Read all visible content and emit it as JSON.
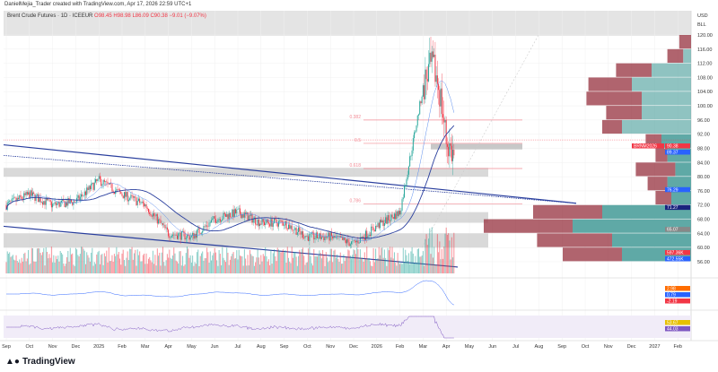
{
  "credit": "DanielMejia_Trader created with TradingView.com, Apr 17, 2026 22:59 UTC+1",
  "legend": {
    "symbol": "Brent Crude Futures · 1D · ICEEUR",
    "o": "O98.45",
    "h": "H98.98",
    "l": "L86.09",
    "c": "C90.38",
    "chg": "−9.01 (−9.07%)"
  },
  "axis": {
    "currency": "USD",
    "unit": "BLL"
  },
  "fib": [
    {
      "label": "0.382",
      "price": 96
    },
    {
      "label": "0.5",
      "price": 89.4
    },
    {
      "label": "0.618",
      "price": 82.3
    },
    {
      "label": "0.786",
      "price": 72.3
    }
  ],
  "badges": {
    "date": "BRNM2026",
    "last": "90.38",
    "ma1": "89.37",
    "ma2": "76.29",
    "ma3": "71.27",
    "ma4": "65.07",
    "vol1": "597.36K",
    "vol2": "472.55K",
    "macd1": "2.98",
    "macd2": "0.79",
    "macd3": "-2.19",
    "rsi1": "53.67",
    "rsi2": "44.03"
  },
  "colors": {
    "up": "#26a69a",
    "down": "#f23645",
    "trend": "#2a3f9e",
    "vp_up": "#5fa9a6",
    "vp_down": "#9c3d4a"
  },
  "footer": {
    "logo": "TradingView"
  },
  "chart_data": {
    "type": "candlestick",
    "title": "Brent Crude Futures · 1D · ICEEUR",
    "x_ticks": [
      "Sep",
      "Oct",
      "Nov",
      "Dec",
      "2025",
      "Feb",
      "Mar",
      "Apr",
      "May",
      "Jun",
      "Jul",
      "Aug",
      "Sep",
      "Oct",
      "Nov",
      "Dec",
      "2026",
      "Feb",
      "Mar",
      "Apr",
      "May",
      "Jun",
      "Jul",
      "Aug",
      "Sep",
      "Oct",
      "Nov",
      "Dec",
      "2027",
      "Feb"
    ],
    "y_ticks": [
      120,
      116,
      112,
      108,
      104,
      100,
      96,
      92,
      88,
      84,
      80,
      76,
      72,
      68,
      64,
      60,
      56
    ],
    "ylim": [
      54,
      122
    ],
    "approx_monthly_close": [
      72,
      75,
      72,
      73,
      79,
      75,
      72,
      64,
      63,
      68,
      70,
      67,
      67,
      63,
      63,
      61,
      66,
      70,
      105,
      90.38
    ],
    "volume_profile": [
      [
        118,
        0,
        6
      ],
      [
        114,
        4,
        8
      ],
      [
        110,
        20,
        18
      ],
      [
        106,
        30,
        22
      ],
      [
        102,
        25,
        28
      ],
      [
        98,
        25,
        18
      ],
      [
        94,
        35,
        10
      ],
      [
        90,
        15,
        8
      ],
      [
        86,
        12,
        6
      ],
      [
        82,
        8,
        20
      ],
      [
        78,
        12,
        10
      ],
      [
        74,
        10,
        8
      ],
      [
        70,
        45,
        35
      ],
      [
        66,
        60,
        45
      ],
      [
        62,
        40,
        38
      ],
      [
        58,
        35,
        30
      ]
    ],
    "macd_ticks": [
      "10.00"
    ],
    "rsi_ticks": [
      "75.00",
      "25.00"
    ]
  }
}
